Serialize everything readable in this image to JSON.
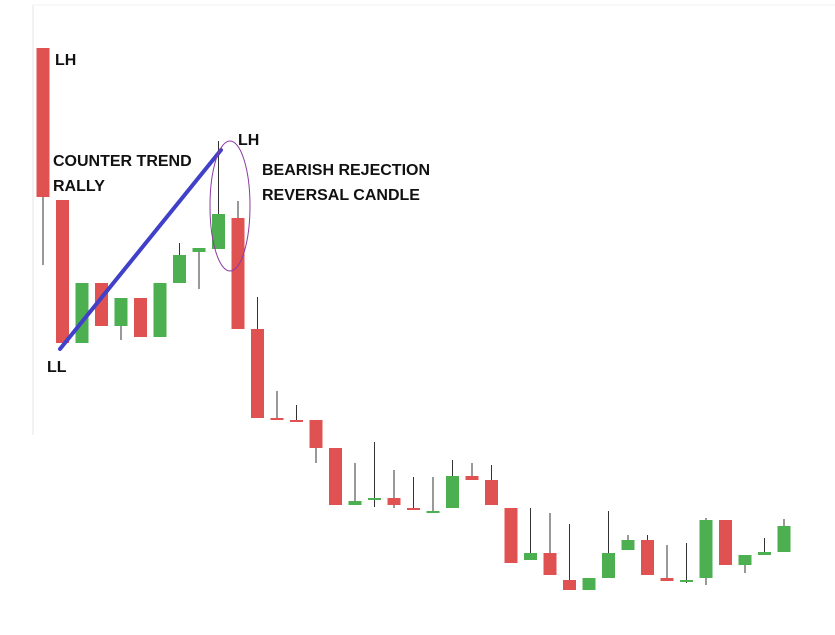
{
  "chart_data": {
    "type": "candlestick",
    "title": "",
    "xlabel": "",
    "ylabel": "",
    "ylim": [
      0,
      630
    ],
    "grid": false,
    "colors": {
      "bullish": "#4caf50",
      "bearish": "#e05252",
      "trendline": "#4040c8",
      "highlight_ellipse": "#8b3aa0",
      "frame": "#e6e6e6"
    },
    "candles": [
      {
        "open": 587,
        "close": 438,
        "high": 587,
        "low": 370,
        "dir": "bear"
      },
      {
        "open": 435,
        "close": 292,
        "high": 435,
        "low": 292,
        "dir": "bear"
      },
      {
        "open": 292,
        "close": 352,
        "high": 352,
        "low": 292,
        "dir": "bull"
      },
      {
        "open": 352,
        "close": 309,
        "high": 352,
        "low": 309,
        "dir": "bear"
      },
      {
        "open": 309,
        "close": 337,
        "high": 337,
        "low": 295,
        "dir": "bull"
      },
      {
        "open": 337,
        "close": 298,
        "high": 337,
        "low": 298,
        "dir": "bear"
      },
      {
        "open": 298,
        "close": 352,
        "high": 352,
        "low": 298,
        "dir": "bull"
      },
      {
        "open": 352,
        "close": 380,
        "high": 392,
        "low": 352,
        "dir": "bull"
      },
      {
        "open": 383,
        "close": 387,
        "high": 387,
        "low": 346,
        "dir": "bull"
      },
      {
        "open": 386,
        "close": 421,
        "high": 494,
        "low": 386,
        "dir": "bull"
      },
      {
        "open": 417,
        "close": 306,
        "high": 434,
        "low": 306,
        "dir": "bear"
      },
      {
        "open": 306,
        "close": 217,
        "high": 338,
        "low": 217,
        "dir": "bear"
      },
      {
        "open": 217,
        "close": 215,
        "high": 244,
        "low": 215,
        "dir": "bear"
      },
      {
        "open": 215,
        "close": 215,
        "high": 230,
        "low": 215,
        "dir": "bear"
      },
      {
        "open": 215,
        "close": 187,
        "high": 215,
        "low": 172,
        "dir": "bear"
      },
      {
        "open": 187,
        "close": 130,
        "high": 187,
        "low": 130,
        "dir": "bear"
      },
      {
        "open": 130,
        "close": 134,
        "high": 172,
        "low": 130,
        "dir": "bull"
      },
      {
        "open": 135,
        "close": 137,
        "high": 193,
        "low": 128,
        "dir": "bull"
      },
      {
        "open": 137,
        "close": 130,
        "high": 165,
        "low": 127,
        "dir": "bear"
      },
      {
        "open": 127,
        "close": 125,
        "high": 158,
        "low": 125,
        "dir": "bear"
      },
      {
        "open": 124,
        "close": 124,
        "high": 158,
        "low": 124,
        "dir": "bull"
      },
      {
        "open": 127,
        "close": 159,
        "high": 175,
        "low": 127,
        "dir": "bull"
      },
      {
        "open": 159,
        "close": 155,
        "high": 172,
        "low": 155,
        "dir": "bear"
      },
      {
        "open": 155,
        "close": 130,
        "high": 170,
        "low": 130,
        "dir": "bear"
      },
      {
        "open": 127,
        "close": 72,
        "high": 127,
        "low": 72,
        "dir": "bear"
      },
      {
        "open": 75,
        "close": 82,
        "high": 127,
        "low": 75,
        "dir": "bull"
      },
      {
        "open": 82,
        "close": 60,
        "high": 122,
        "low": 60,
        "dir": "bear"
      },
      {
        "open": 55,
        "close": 45,
        "high": 111,
        "low": 45,
        "dir": "bear"
      },
      {
        "open": 45,
        "close": 57,
        "high": 57,
        "low": 45,
        "dir": "bull"
      },
      {
        "open": 57,
        "close": 82,
        "high": 124,
        "low": 57,
        "dir": "bull"
      },
      {
        "open": 85,
        "close": 95,
        "high": 100,
        "low": 85,
        "dir": "bull"
      },
      {
        "open": 95,
        "close": 60,
        "high": 100,
        "low": 60,
        "dir": "bear"
      },
      {
        "open": 57,
        "close": 54,
        "high": 90,
        "low": 54,
        "dir": "bear"
      },
      {
        "open": 55,
        "close": 55,
        "high": 92,
        "low": 52,
        "dir": "bull"
      },
      {
        "open": 57,
        "close": 115,
        "high": 117,
        "low": 50,
        "dir": "bull"
      },
      {
        "open": 115,
        "close": 70,
        "high": 115,
        "low": 70,
        "dir": "bear"
      },
      {
        "open": 70,
        "close": 80,
        "high": 80,
        "low": 62,
        "dir": "bull"
      },
      {
        "open": 80,
        "close": 83,
        "high": 97,
        "low": 80,
        "dir": "bull"
      },
      {
        "open": 83,
        "close": 109,
        "high": 116,
        "low": 83,
        "dir": "bull"
      }
    ],
    "annotations": {
      "lh_top": "LH",
      "lh_second": "LH",
      "ll": "LL",
      "counter_trend_line1": "COUNTER TREND",
      "counter_trend_line2": "RALLY",
      "bearish_line1": "BEARISH REJECTION",
      "bearish_line2": "REVERSAL CANDLE"
    }
  }
}
